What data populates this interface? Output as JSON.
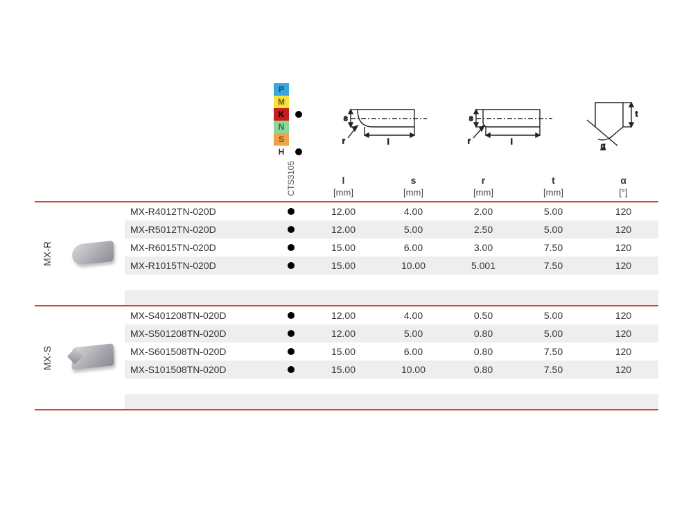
{
  "iso_classes": [
    {
      "code": "P",
      "bg": "#3aa6dd",
      "fg": "#0b4a6b",
      "available": false
    },
    {
      "code": "M",
      "bg": "#f7e23b",
      "fg": "#6b5a00",
      "available": false
    },
    {
      "code": "K",
      "bg": "#c41f1f",
      "fg": "#000000",
      "available": true
    },
    {
      "code": "N",
      "bg": "#8fd49a",
      "fg": "#2a6a37",
      "available": false
    },
    {
      "code": "S",
      "bg": "#f0a24a",
      "fg": "#7a4a0f",
      "available": false
    },
    {
      "code": "H",
      "bg": "#ffffff",
      "fg": "#333333",
      "available": true
    }
  ],
  "grade_label": "CTS3105",
  "columns": [
    {
      "sym": "l",
      "unit": "[mm]"
    },
    {
      "sym": "s",
      "unit": "[mm]"
    },
    {
      "sym": "r",
      "unit": "[mm]"
    },
    {
      "sym": "t",
      "unit": "[mm]"
    },
    {
      "sym": "α",
      "unit": "[°]"
    }
  ],
  "sections": [
    {
      "key": "mxr",
      "label": "MX-R",
      "insert_type": "r",
      "rows": [
        {
          "part": "MX-R4012TN-020D",
          "cts": true,
          "vals": [
            "12.00",
            "4.00",
            "2.00",
            "5.00",
            "120"
          ]
        },
        {
          "part": "MX-R5012TN-020D",
          "cts": true,
          "vals": [
            "12.00",
            "5.00",
            "2.50",
            "5.00",
            "120"
          ]
        },
        {
          "part": "MX-R6015TN-020D",
          "cts": true,
          "vals": [
            "15.00",
            "6.00",
            "3.00",
            "7.50",
            "120"
          ]
        },
        {
          "part": "MX-R1015TN-020D",
          "cts": true,
          "vals": [
            "15.00",
            "10.00",
            "5.001",
            "7.50",
            "120"
          ]
        }
      ]
    },
    {
      "key": "mxs",
      "label": "MX-S",
      "insert_type": "s",
      "rows": [
        {
          "part": "MX-S401208TN-020D",
          "cts": true,
          "vals": [
            "12.00",
            "4.00",
            "0.50",
            "5.00",
            "120"
          ]
        },
        {
          "part": "MX-S501208TN-020D",
          "cts": true,
          "vals": [
            "12.00",
            "5.00",
            "0.80",
            "5.00",
            "120"
          ]
        },
        {
          "part": "MX-S601508TN-020D",
          "cts": true,
          "vals": [
            "15.00",
            "6.00",
            "0.80",
            "7.50",
            "120"
          ]
        },
        {
          "part": "MX-S101508TN-020D",
          "cts": true,
          "vals": [
            "15.00",
            "10.00",
            "0.80",
            "7.50",
            "120"
          ]
        }
      ]
    }
  ],
  "colors": {
    "rule": "#c94a3b",
    "row_alt": "#eeeeee",
    "text": "#333333"
  }
}
